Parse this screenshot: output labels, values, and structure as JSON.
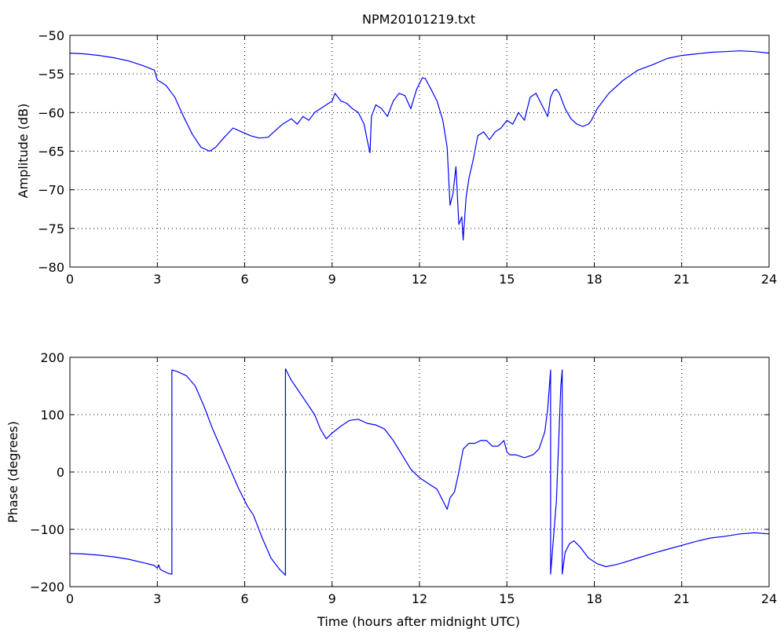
{
  "chart_data": [
    {
      "type": "line",
      "title": "NPM20101219.txt",
      "xlabel": "",
      "ylabel": "Amplitude (dB)",
      "xlim": [
        0,
        24
      ],
      "ylim": [
        -80,
        -50
      ],
      "xticks": [
        0,
        3,
        6,
        9,
        12,
        15,
        18,
        21,
        24
      ],
      "yticks": [
        -80,
        -75,
        -70,
        -65,
        -60,
        -55,
        -50
      ],
      "grid": true,
      "line_color": "#0000ff",
      "series": [
        {
          "x": [
            0,
            0.5,
            1,
            1.5,
            2,
            2.5,
            2.9,
            3.0,
            3.1,
            3.3,
            3.6,
            3.9,
            4.2,
            4.5,
            4.8,
            5.0,
            5.3,
            5.6,
            5.9,
            6.2,
            6.5,
            6.8,
            7.0,
            7.3,
            7.6,
            7.8,
            8.0,
            8.2,
            8.4,
            8.6,
            8.8,
            9.0,
            9.1,
            9.3,
            9.5,
            9.7,
            9.9,
            10.1,
            10.2,
            10.3,
            10.35,
            10.5,
            10.7,
            10.9,
            11.1,
            11.3,
            11.5,
            11.7,
            11.9,
            12.1,
            12.2,
            12.4,
            12.6,
            12.8,
            12.95,
            13.05,
            13.15,
            13.25,
            13.35,
            13.45,
            13.5,
            13.6,
            13.7,
            13.85,
            14.0,
            14.2,
            14.4,
            14.6,
            14.8,
            15.0,
            15.2,
            15.4,
            15.6,
            15.8,
            16.0,
            16.2,
            16.4,
            16.5,
            16.6,
            16.7,
            16.8,
            16.9,
            17.0,
            17.2,
            17.4,
            17.6,
            17.8,
            17.9,
            18.1,
            18.5,
            19.0,
            19.5,
            20.0,
            20.5,
            21.0,
            21.5,
            22.0,
            22.5,
            23.0,
            23.5,
            24.0
          ],
          "y": [
            -52.3,
            -52.4,
            -52.6,
            -52.9,
            -53.3,
            -53.9,
            -54.5,
            -55.8,
            -56.0,
            -56.5,
            -58.0,
            -60.5,
            -62.8,
            -64.5,
            -65.0,
            -64.5,
            -63.2,
            -62.0,
            -62.5,
            -63.0,
            -63.3,
            -63.2,
            -62.5,
            -61.5,
            -60.8,
            -61.5,
            -60.5,
            -61.0,
            -60.0,
            -59.5,
            -59.0,
            -58.5,
            -57.5,
            -58.5,
            -58.8,
            -59.5,
            -60.0,
            -61.5,
            -63.5,
            -65.2,
            -60.5,
            -59.0,
            -59.5,
            -60.5,
            -58.5,
            -57.5,
            -57.8,
            -59.5,
            -57.0,
            -55.5,
            -55.6,
            -57.0,
            -58.5,
            -61.0,
            -64.5,
            -72.0,
            -70.5,
            -67.0,
            -74.5,
            -73.5,
            -76.5,
            -71.0,
            -68.5,
            -66.0,
            -63.0,
            -62.5,
            -63.5,
            -62.5,
            -62.0,
            -61.0,
            -61.5,
            -60.0,
            -61.0,
            -58.0,
            -57.5,
            -59.0,
            -60.5,
            -58.0,
            -57.2,
            -57.0,
            -57.5,
            -58.5,
            -59.5,
            -60.8,
            -61.5,
            -61.8,
            -61.5,
            -61.0,
            -59.5,
            -57.5,
            -55.8,
            -54.5,
            -53.8,
            -53.0,
            -52.6,
            -52.4,
            -52.2,
            -52.1,
            -52.0,
            -52.1,
            -52.3
          ]
        }
      ]
    },
    {
      "type": "line",
      "title": "",
      "xlabel": "Time (hours after midnight UTC)",
      "ylabel": "Phase (degrees)",
      "xlim": [
        0,
        24
      ],
      "ylim": [
        -200,
        200
      ],
      "xticks": [
        0,
        3,
        6,
        9,
        12,
        15,
        18,
        21,
        24
      ],
      "yticks": [
        -200,
        -100,
        0,
        100,
        200
      ],
      "grid": true,
      "line_color": "#0000ff",
      "series": [
        {
          "x": [
            0,
            0.5,
            1,
            1.5,
            2,
            2.5,
            2.9,
            3.0,
            3.05,
            3.1,
            3.3,
            3.45,
            3.5,
            3.5,
            3.7,
            4.0,
            4.3,
            4.6,
            4.9,
            5.2,
            5.5,
            5.8,
            6.1,
            6.3,
            6.6,
            6.9,
            7.2,
            7.4,
            7.4,
            7.6,
            7.8,
            8.0,
            8.2,
            8.4,
            8.6,
            8.8,
            9.0,
            9.3,
            9.6,
            9.9,
            10.2,
            10.5,
            10.8,
            11.1,
            11.4,
            11.7,
            12.0,
            12.3,
            12.6,
            12.8,
            12.95,
            13.05,
            13.2,
            13.35,
            13.5,
            13.7,
            13.9,
            14.1,
            14.3,
            14.5,
            14.7,
            14.9,
            15.0,
            15.1,
            15.3,
            15.6,
            15.9,
            16.1,
            16.3,
            16.4,
            16.5,
            16.5,
            16.7,
            16.85,
            16.9,
            16.9,
            17.0,
            17.15,
            17.3,
            17.5,
            17.8,
            18.1,
            18.4,
            18.7,
            19.0,
            19.5,
            20.0,
            20.5,
            21.0,
            21.5,
            22.0,
            22.5,
            23.0,
            23.5,
            24.0
          ],
          "y": [
            -142,
            -143,
            -145,
            -148,
            -152,
            -158,
            -163,
            -168,
            -162,
            -170,
            -175,
            -178,
            -178,
            178,
            175,
            168,
            150,
            115,
            75,
            40,
            5,
            -30,
            -60,
            -75,
            -115,
            -150,
            -170,
            -180,
            180,
            160,
            145,
            130,
            115,
            100,
            75,
            58,
            68,
            80,
            90,
            92,
            85,
            82,
            75,
            55,
            30,
            5,
            -10,
            -20,
            -30,
            -50,
            -65,
            -45,
            -35,
            0,
            40,
            50,
            50,
            55,
            55,
            45,
            45,
            55,
            35,
            30,
            30,
            25,
            30,
            40,
            70,
            110,
            178,
            -178,
            -50,
            150,
            178,
            -178,
            -140,
            -125,
            -120,
            -130,
            -150,
            -160,
            -165,
            -162,
            -158,
            -150,
            -142,
            -135,
            -128,
            -121,
            -115,
            -112,
            -108,
            -106,
            -108
          ]
        }
      ]
    }
  ]
}
